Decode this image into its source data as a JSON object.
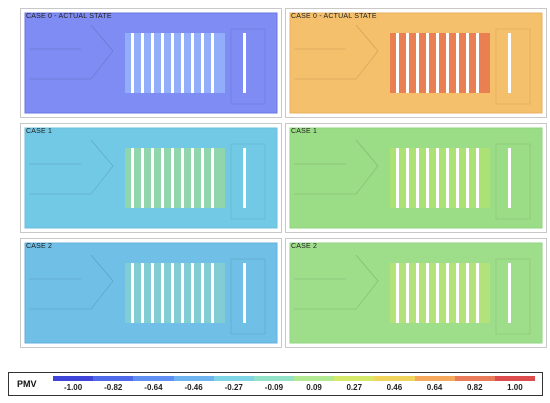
{
  "panels": [
    {
      "label": "CASE 0 - ACTUAL STATE",
      "fill": "#7f8cf3",
      "edge": "#6874e6",
      "stripe": "#ffffff",
      "glow": "#a3c8ff"
    },
    {
      "label": "CASE 0 - ACTUAL STATE",
      "fill": "#f5c06b",
      "edge": "#e8b060",
      "stripe": "#ffffff",
      "glow": "#e04b3c"
    },
    {
      "label": "CASE 1",
      "fill": "#72c9e6",
      "edge": "#6bbde0",
      "stripe": "#ffffff",
      "glow": "#a9de7c"
    },
    {
      "label": "CASE 1",
      "fill": "#9bdc86",
      "edge": "#8fd47d",
      "stripe": "#ffffff",
      "glow": "#b9e66a"
    },
    {
      "label": "CASE 2",
      "fill": "#6fbfe6",
      "edge": "#63b1dd",
      "stripe": "#ffffff",
      "glow": "#8fd8c3"
    },
    {
      "label": "CASE 2",
      "fill": "#9edd8a",
      "edge": "#92d483",
      "stripe": "#ffffff",
      "glow": "#c3e66b"
    }
  ],
  "legend": {
    "title": "PMV",
    "ticks": [
      "-1.00",
      "-0.82",
      "-0.64",
      "-0.46",
      "-0.27",
      "-0.09",
      "0.09",
      "0.27",
      "0.46",
      "0.64",
      "0.82",
      "1.00"
    ],
    "colors": [
      "#3f45d8",
      "#4f6ae8",
      "#5f8ff2",
      "#6fb4f0",
      "#7fd4e6",
      "#93e2c8",
      "#b2e891",
      "#d4e86a",
      "#f0d45b",
      "#f4a95c",
      "#ea7b5a",
      "#dd4d4d"
    ]
  }
}
